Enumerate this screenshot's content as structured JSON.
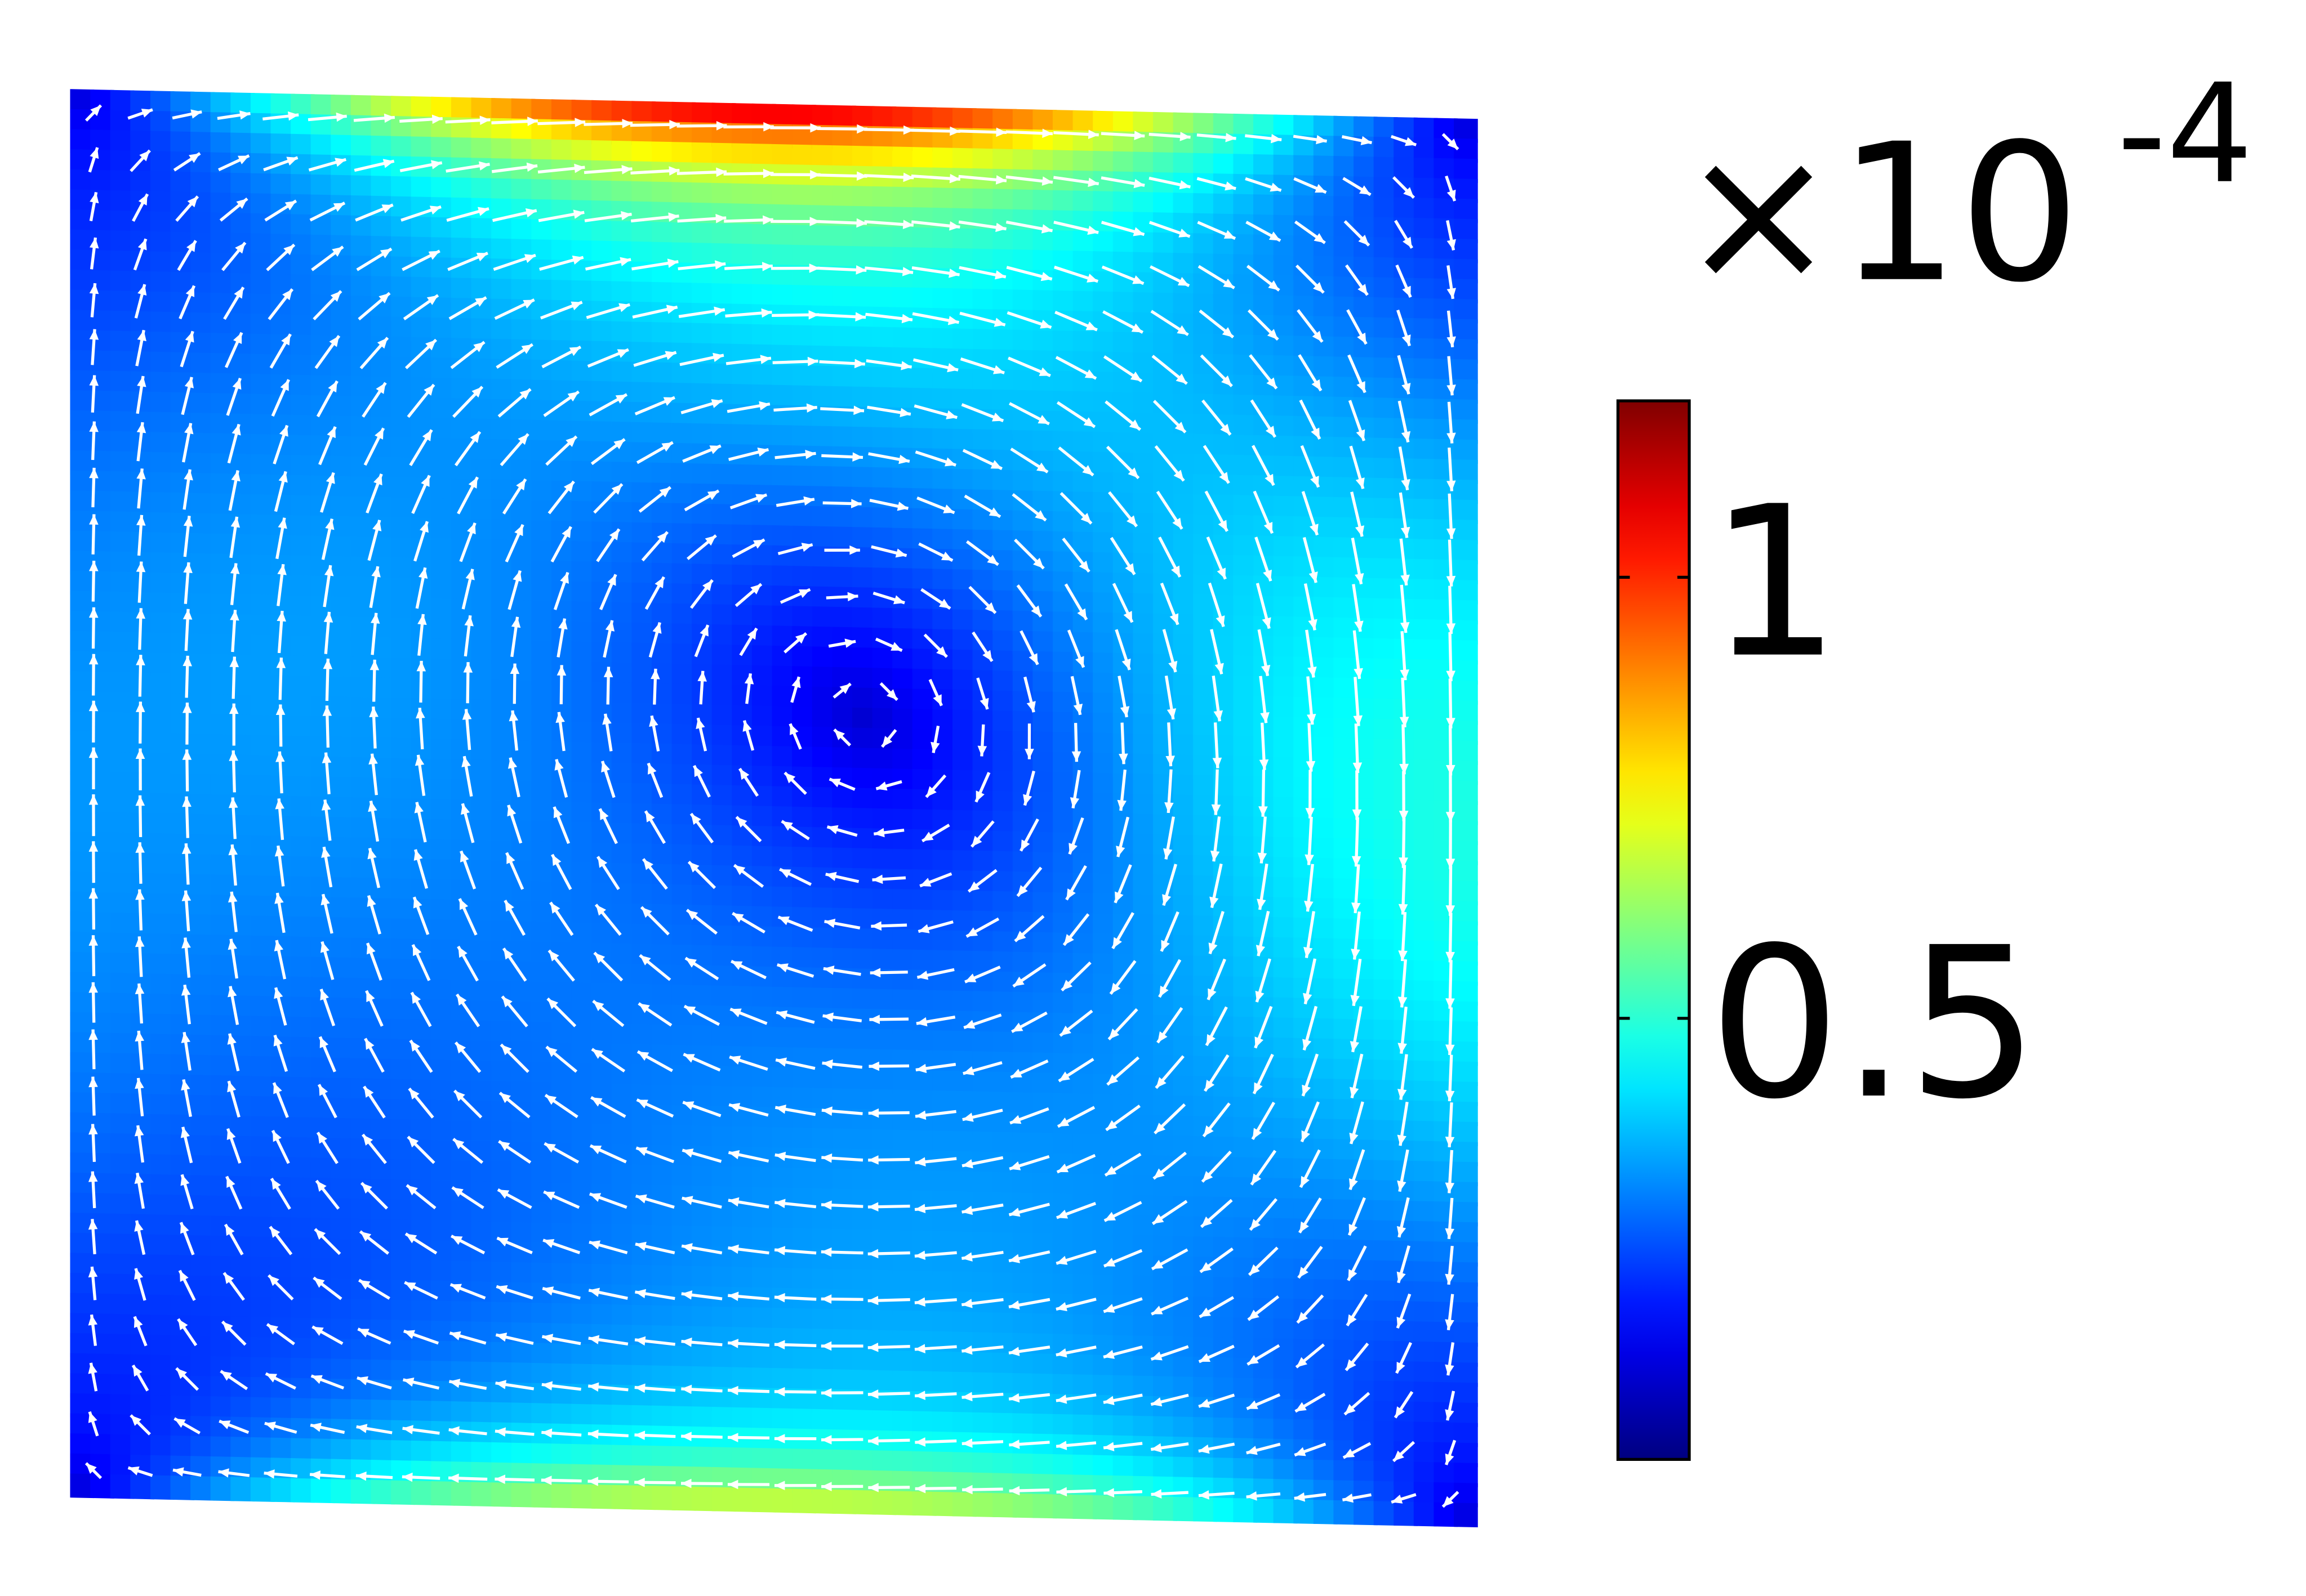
{
  "chart_data": {
    "type": "heatmap",
    "colormap": "jet",
    "colorbar": {
      "multiplier": "×10",
      "exponent": "-4",
      "clim": [
        0,
        1.2
      ],
      "ticks": [
        0.5,
        1
      ]
    }
  }
}
